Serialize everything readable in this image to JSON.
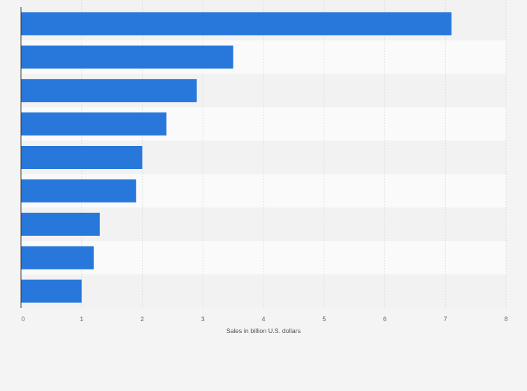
{
  "chart_data": {
    "type": "bar",
    "orientation": "horizontal",
    "categories": [
      "",
      "",
      "",
      "",
      "",
      "",
      "",
      "",
      ""
    ],
    "values": [
      7.1,
      3.5,
      2.9,
      2.4,
      2.0,
      1.9,
      1.3,
      1.2,
      1.0
    ],
    "xlabel": "Sales in billion U.S. dollars",
    "xlim": [
      0,
      8
    ],
    "xticks": [
      "0",
      "1",
      "2",
      "3",
      "4",
      "5",
      "6",
      "7",
      "8"
    ],
    "grid": true,
    "bar_color": "#2878dc",
    "band_colors": [
      "#f2f2f2",
      "#fafafa"
    ],
    "gridline_color": "#dddddd",
    "axis_color": "#333333"
  }
}
